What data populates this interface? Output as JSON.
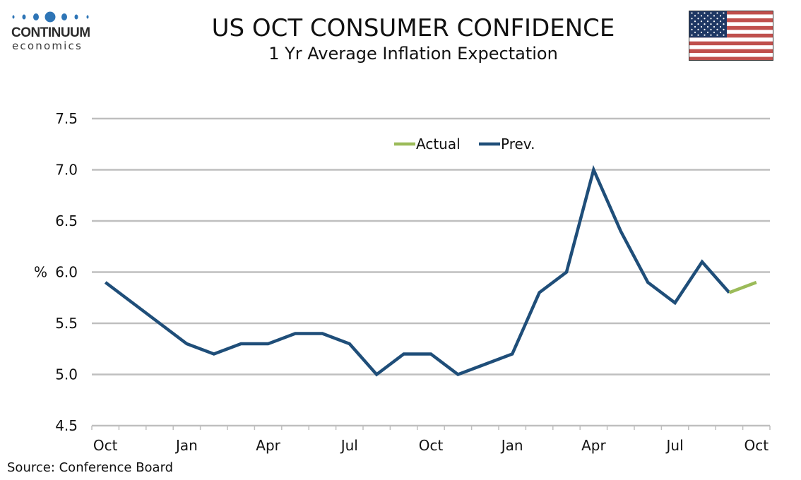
{
  "header": {
    "title": "US OCT CONSUMER CONFIDENCE",
    "subtitle": "1 Yr Average Inflation Expectation"
  },
  "logo": {
    "name": "CONTINUUM",
    "tagline": "economics",
    "color": "#2e75b6"
  },
  "flag": {
    "icon": "us-flag-icon"
  },
  "source": "Source: Conference Board",
  "chart_data": {
    "type": "line",
    "title": "US OCT CONSUMER CONFIDENCE",
    "subtitle": "1 Yr Average Inflation Expectation",
    "xlabel": "",
    "ylabel": "%",
    "ylim": [
      4.5,
      7.5
    ],
    "yticks": [
      "4.5",
      "5.0",
      "5.5",
      "6.0",
      "6.5",
      "7.0",
      "7.5"
    ],
    "ytick_values": [
      4.5,
      5.0,
      5.5,
      6.0,
      6.5,
      7.0,
      7.5
    ],
    "x": [
      "Oct",
      "Nov",
      "Dec",
      "Jan",
      "Feb",
      "Mar",
      "Apr",
      "May",
      "Jun",
      "Jul",
      "Aug",
      "Sep",
      "Oct",
      "Nov",
      "Dec",
      "Jan",
      "Feb",
      "Mar",
      "Apr",
      "May",
      "Jun",
      "Jul",
      "Aug",
      "Sep",
      "Oct"
    ],
    "xtick_labels": [
      {
        "index": 0,
        "label": "Oct"
      },
      {
        "index": 3,
        "label": "Jan"
      },
      {
        "index": 6,
        "label": "Apr"
      },
      {
        "index": 9,
        "label": "Jul"
      },
      {
        "index": 12,
        "label": "Oct"
      },
      {
        "index": 15,
        "label": "Jan"
      },
      {
        "index": 18,
        "label": "Apr"
      },
      {
        "index": 21,
        "label": "Jul"
      },
      {
        "index": 24,
        "label": "Oct"
      }
    ],
    "grid": true,
    "legend_position": "top-center",
    "series": [
      {
        "name": "Actual",
        "color": "#9bbb59",
        "start_index": 23,
        "values": [
          5.8,
          5.9
        ]
      },
      {
        "name": "Prev.",
        "color": "#1f4e79",
        "start_index": 0,
        "values": [
          5.9,
          5.7,
          5.5,
          5.3,
          5.2,
          5.3,
          5.3,
          5.4,
          5.4,
          5.3,
          5.0,
          5.2,
          5.2,
          5.0,
          5.1,
          5.2,
          5.8,
          6.0,
          7.0,
          6.4,
          5.9,
          5.7,
          6.1,
          5.8
        ]
      }
    ]
  }
}
